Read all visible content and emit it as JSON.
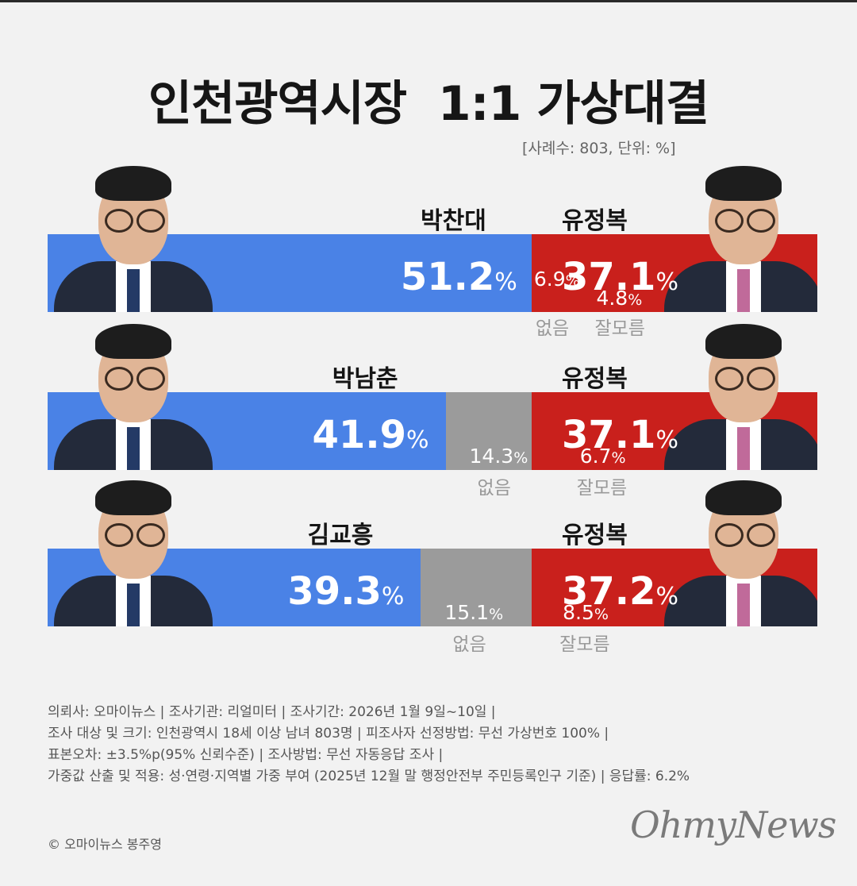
{
  "title": "인천광역시장  1:1 가상대결",
  "sample_note": "[사례수: 803,  단위: %]",
  "chart_data": {
    "type": "bar",
    "stacked": true,
    "unit": "%",
    "categories": [
      "박찬대 vs 유정복",
      "박남춘 vs 유정복",
      "김교흥 vs 유정복"
    ],
    "rows": [
      {
        "left_name": "박찬대",
        "left": 51.2,
        "none": 6.9,
        "dk": 4.8,
        "right_name": "유정복",
        "right": 37.1
      },
      {
        "left_name": "박남춘",
        "left": 41.9,
        "none": 14.3,
        "dk": 6.7,
        "right_name": "유정복",
        "right": 37.1
      },
      {
        "left_name": "김교흥",
        "left": 39.3,
        "none": 15.1,
        "dk": 8.5,
        "right_name": "유정복",
        "right": 37.2
      }
    ],
    "labels": {
      "none": "없음",
      "dk": "잘모름",
      "pct": "%"
    },
    "colors": {
      "left": "#4a82e6",
      "none": "#9b9b9b",
      "dk": "#c9c9c9",
      "right": "#c9201c"
    }
  },
  "notes": [
    "의뢰사: 오마이뉴스 | 조사기관: 리얼미터 | 조사기간: 2026년 1월 9일~10일 |",
    "조사 대상 및 크기: 인천광역시 18세 이상 남녀 803명 | 피조사자 선정방법: 무선 가상번호 100% |",
    "표본오차: ±3.5%p(95% 신뢰수준) | 조사방법: 무선 자동응답 조사 |",
    "가중값 산출 및 적용: 성·연령·지역별 가중 부여 (2025년 12월 말 행정안전부 주민등록인구 기준) | 응답률: 6.2%"
  ],
  "credit": "© 오마이뉴스 봉주영",
  "logo": "OhmyNews"
}
